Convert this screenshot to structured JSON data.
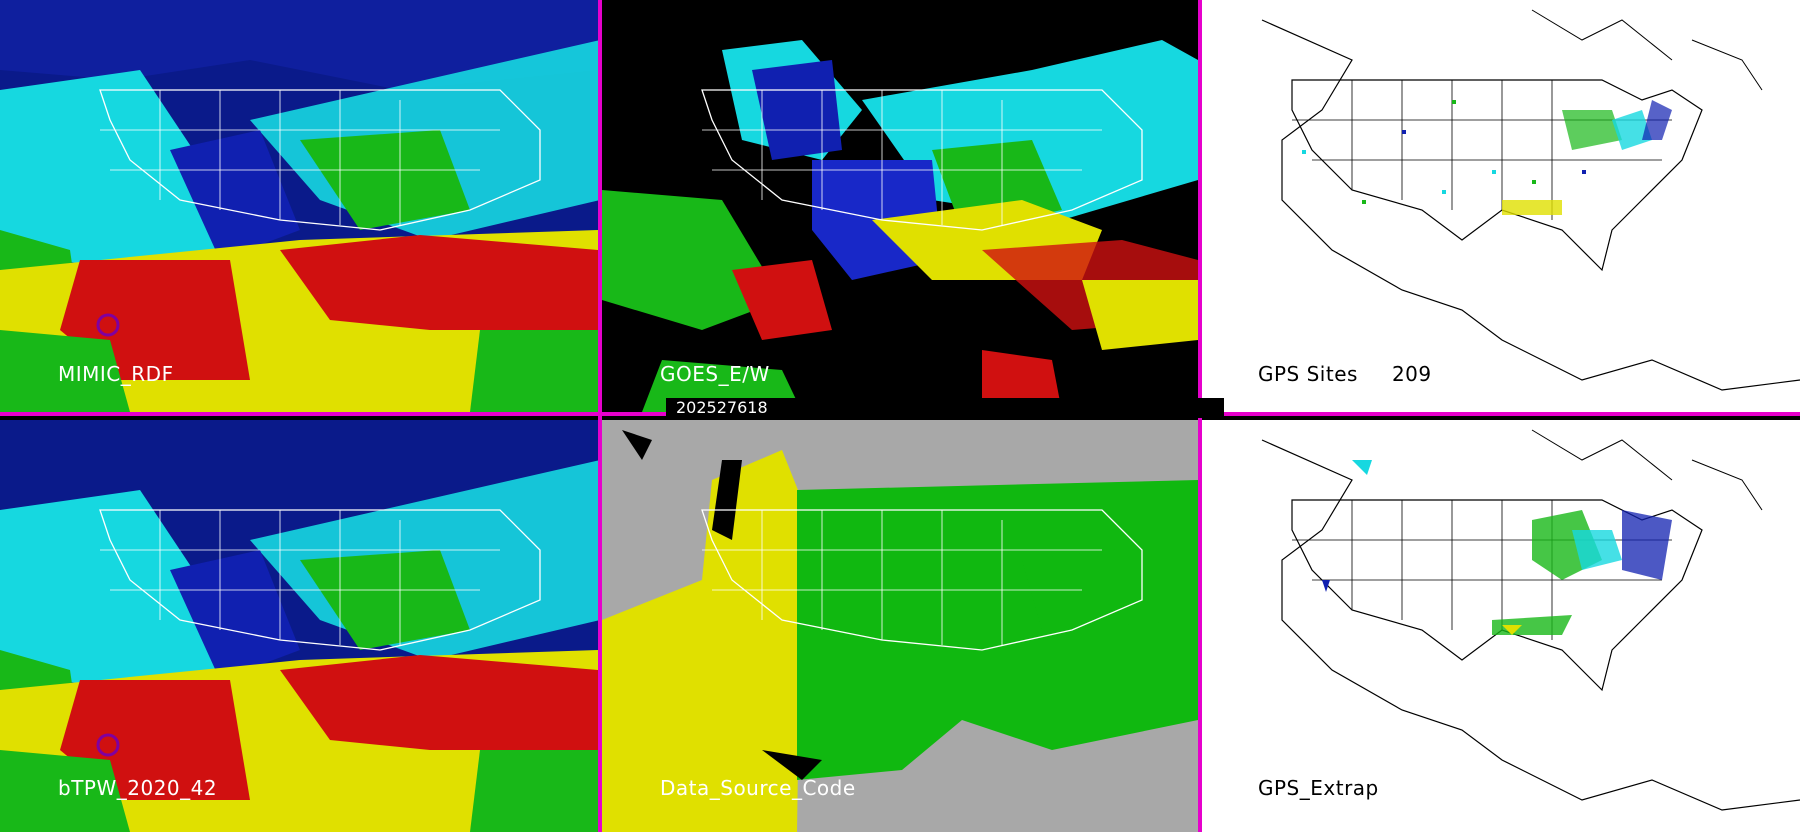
{
  "timestamp": "202527618",
  "panels": [
    {
      "label": "MIMIC_RDF",
      "style": "tpw"
    },
    {
      "label": "GOES_E/W",
      "style": "goes"
    },
    {
      "label": "GPS Sites",
      "count": "209",
      "style": "gps"
    },
    {
      "label": "bTPW_2020_42",
      "style": "tpw"
    },
    {
      "label": "Data_Source_Code",
      "style": "source"
    },
    {
      "label": "GPS_Extrap",
      "style": "extrap"
    }
  ],
  "colors": {
    "separator": "#e600cc",
    "tpw_low": "#1010a0",
    "tpw_mid": "#16d8e0",
    "tpw_green": "#18b818",
    "tpw_yellow": "#e0e000",
    "tpw_high": "#d01010",
    "source_grey": "#a8a8a8",
    "source_yellow": "#e0e000",
    "source_green": "#10b810"
  }
}
